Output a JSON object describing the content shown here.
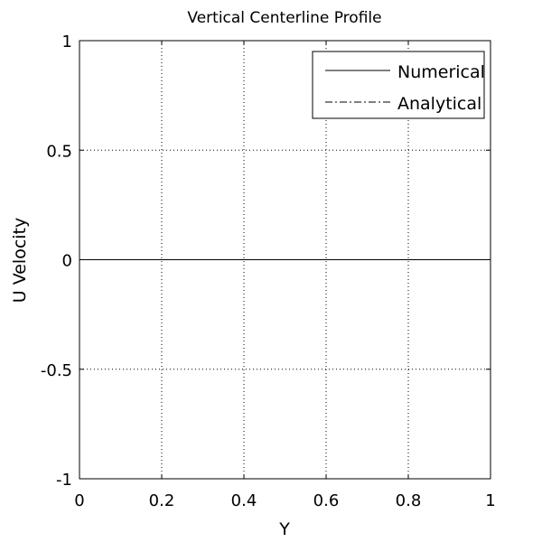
{
  "chart_data": {
    "type": "line",
    "title": "Vertical Centerline Profile",
    "xlabel": "Y",
    "ylabel": "U Velocity",
    "xlim": [
      0,
      1
    ],
    "ylim": [
      -1,
      1
    ],
    "x_ticks": [
      0,
      0.2,
      0.4,
      0.6,
      0.8,
      1
    ],
    "x_tick_labels": [
      "0",
      "0.2",
      "0.4",
      "0.6",
      "0.8",
      "1"
    ],
    "y_ticks": [
      -1,
      -0.5,
      0,
      0.5,
      1
    ],
    "y_tick_labels": [
      "-1",
      "-0.5",
      "0",
      "0.5",
      "1"
    ],
    "grid": true,
    "legend_position": "top-right",
    "series": [
      {
        "name": "Numerical",
        "line_style": "solid",
        "color": "#000000",
        "x": [
          0,
          1
        ],
        "y": [
          0,
          0
        ]
      },
      {
        "name": "Analytical",
        "line_style": "dash-dot",
        "color": "#000000",
        "x": [],
        "y": []
      }
    ]
  }
}
